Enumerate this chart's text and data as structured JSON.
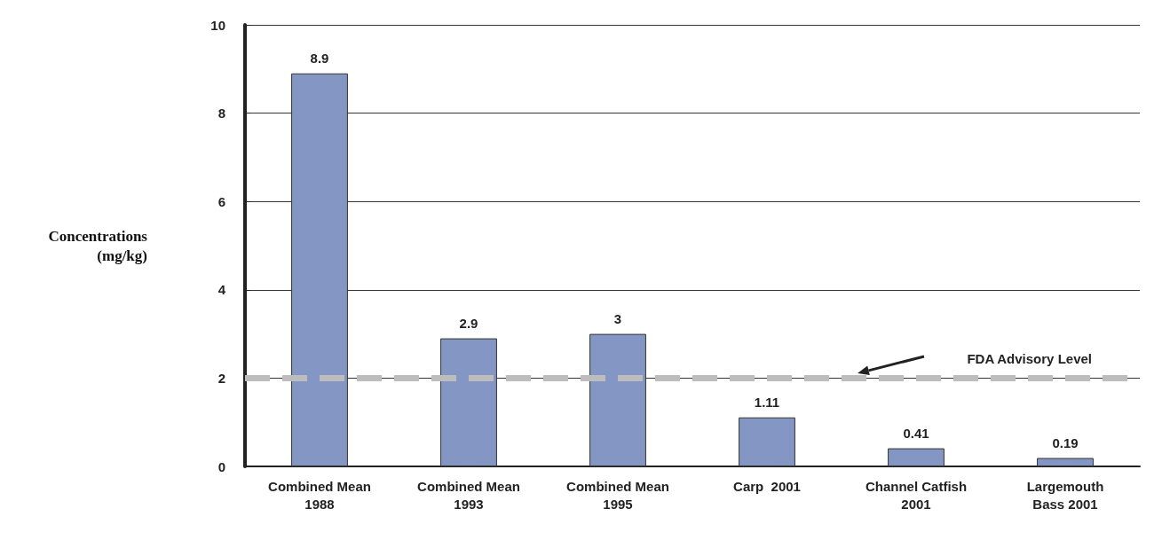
{
  "chart_data": {
    "type": "bar",
    "ylabel": "Concentrations\n(mg/kg)",
    "categories": [
      "Combined Mean\n1988",
      "Combined Mean\n1993",
      "Combined Mean\n1995",
      "Carp  2001",
      "Channel Catfish\n2001",
      "Largemouth\nBass 2001"
    ],
    "values": [
      8.9,
      2.9,
      3,
      1.11,
      0.41,
      0.19
    ],
    "color": "#8496c3",
    "ylim": [
      0,
      10
    ],
    "yticks": [
      0,
      2,
      4,
      6,
      8,
      10
    ],
    "grid": "y",
    "data_labels": true,
    "ref_lines": [
      {
        "axis": "y",
        "value": 2,
        "label": "FDA Advisory Level",
        "color": "#bdbdbd",
        "line_style": "dashed"
      }
    ]
  }
}
